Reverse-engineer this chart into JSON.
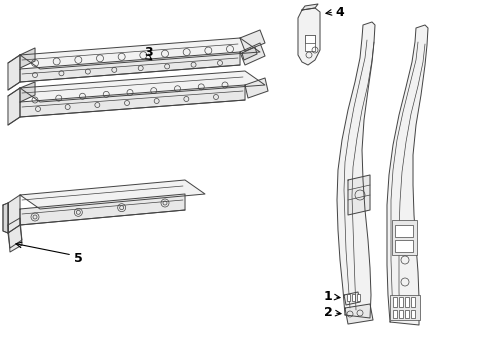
{
  "bg_color": "#ffffff",
  "line_color": "#444444",
  "fill_light": "#f2f2f2",
  "fill_mid": "#e8e8e8",
  "fill_dark": "#d8d8d8"
}
